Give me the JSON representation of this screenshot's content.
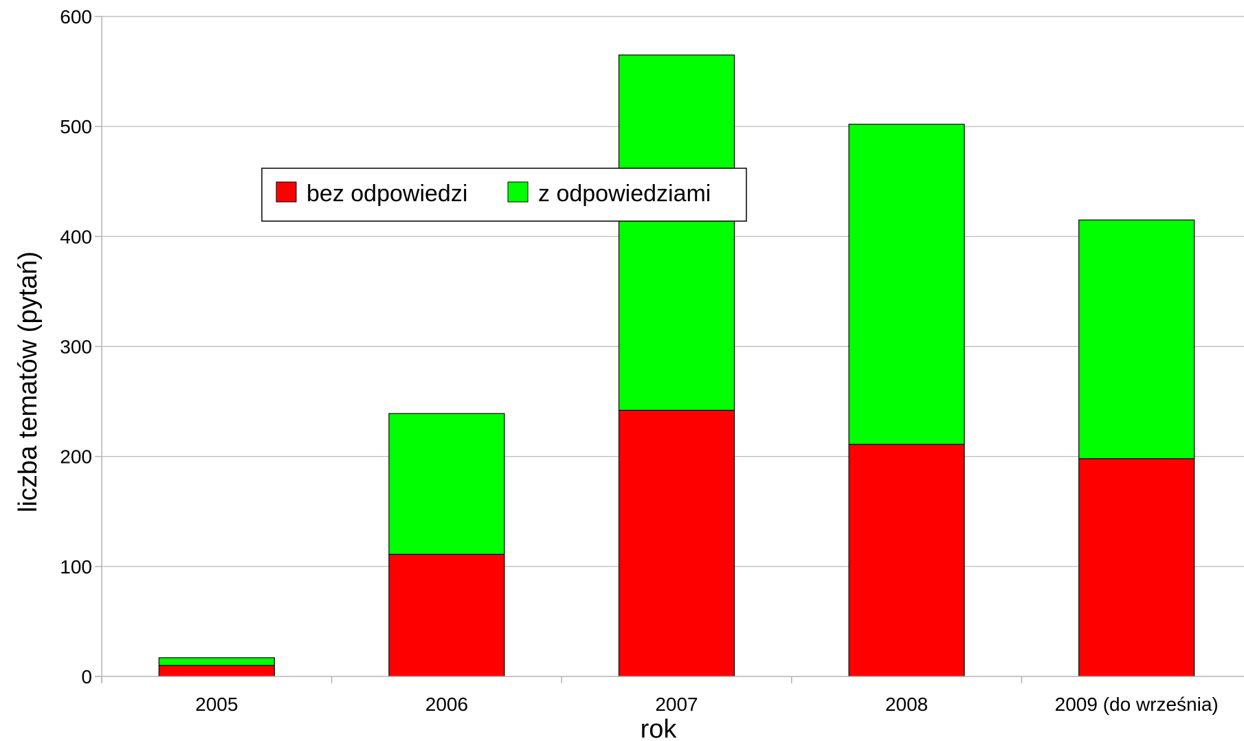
{
  "chart_data": {
    "type": "bar",
    "stacked": true,
    "categories": [
      "2005",
      "2006",
      "2007",
      "2008",
      "2009 (do września)"
    ],
    "series": [
      {
        "name": "bez odpowiedzi",
        "color": "#ff0000",
        "values": [
          10,
          111,
          242,
          211,
          198
        ]
      },
      {
        "name": "z odpowiedziami",
        "color": "#00ff00",
        "values": [
          7,
          128,
          323,
          291,
          217
        ]
      }
    ],
    "title": "",
    "xlabel": "rok",
    "ylabel": "liczba tematów (pytań)",
    "ylim": [
      0,
      600
    ],
    "yticks": [
      "0",
      "100",
      "200",
      "300",
      "400",
      "500",
      "600"
    ],
    "grid": true,
    "legend_position": "top-left, horizontal"
  }
}
